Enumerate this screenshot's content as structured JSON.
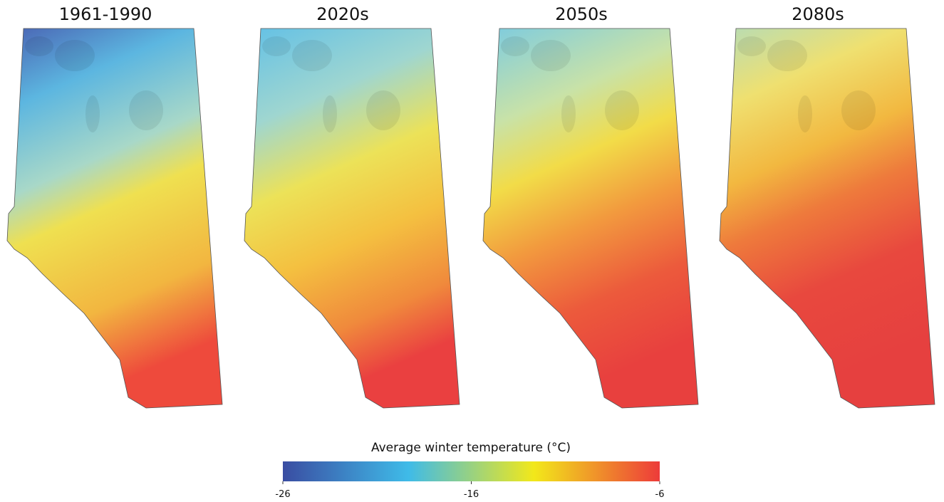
{
  "maps": [
    {
      "title": "1961-1990"
    },
    {
      "title": "2020s"
    },
    {
      "title": "2050s"
    },
    {
      "title": "2080s"
    }
  ],
  "legend": {
    "title": "Average winter temperature (°C)",
    "lim": [
      -26,
      -6
    ],
    "ticks": [
      -26,
      -16,
      -6
    ],
    "colors": [
      "#3a4da2",
      "#3fbbe8",
      "#f2e81a",
      "#ed3b3a"
    ]
  }
}
